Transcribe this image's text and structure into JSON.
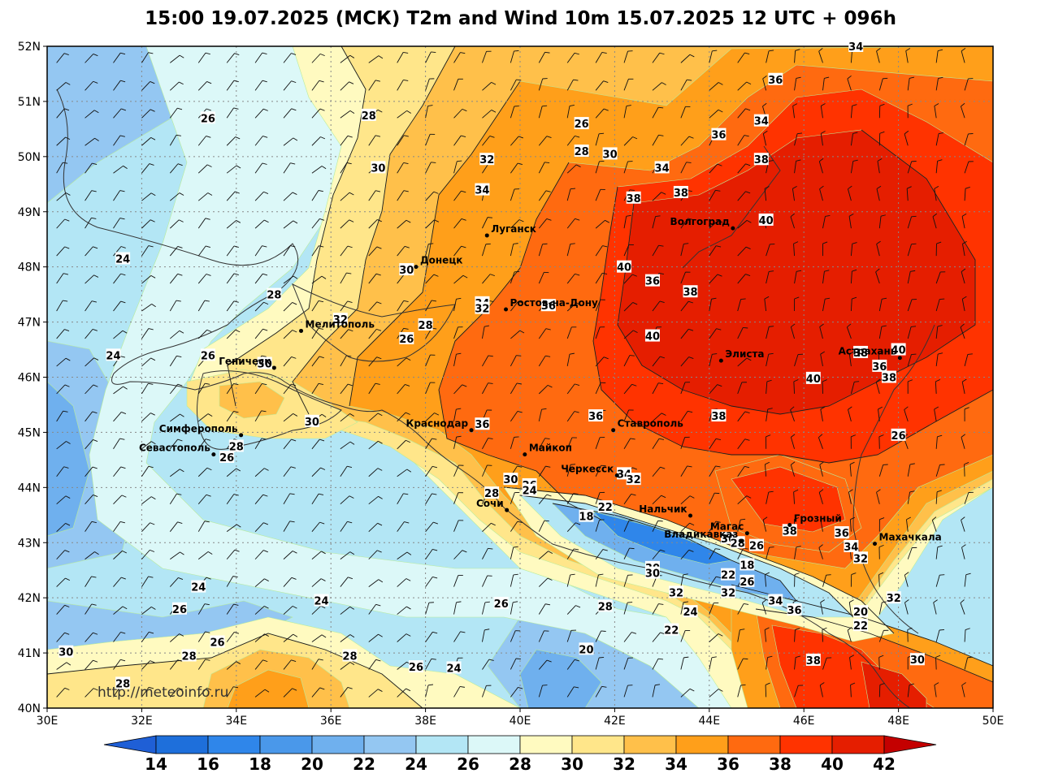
{
  "title": "15:00 19.07.2025 (МСК) T2m and Wind 10m 15.07.2025 12 UTC + 096h",
  "credit": "http://meteoinfo.ru",
  "colors": {
    "14": "#1e6fdb",
    "16": "#2f86ea",
    "18": "#4a98ea",
    "20": "#6fb0ee",
    "22": "#94c7f2",
    "24": "#b3e6f5",
    "26": "#dcf8f8",
    "28": "#fffac0",
    "30": "#ffe68a",
    "32": "#ffc04a",
    "34": "#ff9f1a",
    "36": "#ff6a10",
    "38": "#ff3300",
    "40": "#e51e00",
    "42": "#c40000"
  },
  "lat_labels": [
    "52N",
    "51N",
    "50N",
    "49N",
    "48N",
    "47N",
    "46N",
    "45N",
    "44N",
    "43N",
    "42N",
    "41N",
    "40N"
  ],
  "lon_labels": [
    "30E",
    "32E",
    "34E",
    "36E",
    "38E",
    "40E",
    "42E",
    "44E",
    "46E",
    "48E",
    "50E"
  ],
  "colorbar_labels": [
    "14",
    "16",
    "18",
    "20",
    "22",
    "24",
    "26",
    "28",
    "30",
    "32",
    "34",
    "36",
    "38",
    "40",
    "42"
  ],
  "cities": [
    {
      "name": "Луганск",
      "lon": 39.3,
      "lat": 48.57
    },
    {
      "name": "Донецк",
      "lon": 37.8,
      "lat": 48.0
    },
    {
      "name": "Волгоград",
      "lon": 44.5,
      "lat": 48.7
    },
    {
      "name": "Ростов-на-Дону",
      "lon": 39.7,
      "lat": 47.23
    },
    {
      "name": "Мелитополь",
      "lon": 35.37,
      "lat": 46.84
    },
    {
      "name": "Геническ",
      "lon": 34.8,
      "lat": 46.17
    },
    {
      "name": "Элиста",
      "lon": 44.25,
      "lat": 46.3
    },
    {
      "name": "Астрахань",
      "lon": 48.03,
      "lat": 46.35
    },
    {
      "name": "Краснодар",
      "lon": 38.97,
      "lat": 45.04
    },
    {
      "name": "Ставрополь",
      "lon": 41.97,
      "lat": 45.04
    },
    {
      "name": "Симферополь",
      "lon": 34.1,
      "lat": 44.95
    },
    {
      "name": "Севастополь",
      "lon": 33.52,
      "lat": 44.6
    },
    {
      "name": "Майкоп",
      "lon": 40.1,
      "lat": 44.6
    },
    {
      "name": "Черкесск",
      "lon": 42.05,
      "lat": 44.22
    },
    {
      "name": "Нальчик",
      "lon": 43.6,
      "lat": 43.49
    },
    {
      "name": "Сочи",
      "lon": 39.72,
      "lat": 43.59
    },
    {
      "name": "Магас",
      "lon": 44.8,
      "lat": 43.17
    },
    {
      "name": "Грозный",
      "lon": 45.7,
      "lat": 43.32
    },
    {
      "name": "Владикавказ",
      "lon": 44.68,
      "lat": 43.03
    },
    {
      "name": "Махачкала",
      "lon": 47.5,
      "lat": 42.98
    }
  ],
  "contour_labels": [
    {
      "v": "34",
      "lon": 47.1,
      "lat": 52.0
    },
    {
      "v": "36",
      "lon": 45.4,
      "lat": 51.4
    },
    {
      "v": "26",
      "lon": 33.4,
      "lat": 50.7
    },
    {
      "v": "28",
      "lon": 36.8,
      "lat": 50.75
    },
    {
      "v": "26",
      "lon": 41.3,
      "lat": 50.6
    },
    {
      "v": "36",
      "lon": 44.2,
      "lat": 50.4
    },
    {
      "v": "34",
      "lon": 45.1,
      "lat": 50.65
    },
    {
      "v": "28",
      "lon": 41.3,
      "lat": 50.1
    },
    {
      "v": "30",
      "lon": 41.9,
      "lat": 50.05
    },
    {
      "v": "32",
      "lon": 39.3,
      "lat": 49.95
    },
    {
      "v": "34",
      "lon": 43.0,
      "lat": 49.8
    },
    {
      "v": "38",
      "lon": 45.1,
      "lat": 49.95
    },
    {
      "v": "30",
      "lon": 37.0,
      "lat": 49.8
    },
    {
      "v": "34",
      "lon": 39.2,
      "lat": 49.4
    },
    {
      "v": "38",
      "lon": 43.4,
      "lat": 49.35
    },
    {
      "v": "38",
      "lon": 42.4,
      "lat": 49.25
    },
    {
      "v": "40",
      "lon": 45.2,
      "lat": 48.85
    },
    {
      "v": "24",
      "lon": 31.6,
      "lat": 48.15
    },
    {
      "v": "30",
      "lon": 37.6,
      "lat": 47.95
    },
    {
      "v": "40",
      "lon": 42.2,
      "lat": 48.0
    },
    {
      "v": "36",
      "lon": 42.8,
      "lat": 47.75
    },
    {
      "v": "38",
      "lon": 43.6,
      "lat": 47.55
    },
    {
      "v": "28",
      "lon": 34.8,
      "lat": 47.5
    },
    {
      "v": "34",
      "lon": 39.2,
      "lat": 47.35
    },
    {
      "v": "32",
      "lon": 39.2,
      "lat": 47.25
    },
    {
      "v": "36",
      "lon": 40.6,
      "lat": 47.3
    },
    {
      "v": "32",
      "lon": 36.2,
      "lat": 47.05
    },
    {
      "v": "28",
      "lon": 38.0,
      "lat": 46.95
    },
    {
      "v": "26",
      "lon": 37.6,
      "lat": 46.7
    },
    {
      "v": "40",
      "lon": 42.8,
      "lat": 46.75
    },
    {
      "v": "24",
      "lon": 31.4,
      "lat": 46.4
    },
    {
      "v": "26",
      "lon": 33.4,
      "lat": 46.4
    },
    {
      "v": "30",
      "lon": 34.6,
      "lat": 46.25
    },
    {
      "v": "38",
      "lon": 47.2,
      "lat": 46.45
    },
    {
      "v": "40",
      "lon": 48.0,
      "lat": 46.5
    },
    {
      "v": "36",
      "lon": 47.6,
      "lat": 46.2
    },
    {
      "v": "38",
      "lon": 47.8,
      "lat": 46.0
    },
    {
      "v": "40",
      "lon": 46.2,
      "lat": 45.98
    },
    {
      "v": "36",
      "lon": 41.6,
      "lat": 45.3
    },
    {
      "v": "36",
      "lon": 39.2,
      "lat": 45.15
    },
    {
      "v": "38",
      "lon": 44.2,
      "lat": 45.3
    },
    {
      "v": "30",
      "lon": 35.6,
      "lat": 45.2
    },
    {
      "v": "26",
      "lon": 48.0,
      "lat": 44.95
    },
    {
      "v": "28",
      "lon": 34.0,
      "lat": 44.75
    },
    {
      "v": "26",
      "lon": 33.8,
      "lat": 44.55
    },
    {
      "v": "34",
      "lon": 42.2,
      "lat": 44.25
    },
    {
      "v": "32",
      "lon": 42.4,
      "lat": 44.15
    },
    {
      "v": "30",
      "lon": 39.8,
      "lat": 44.15
    },
    {
      "v": "26",
      "lon": 40.2,
      "lat": 44.05
    },
    {
      "v": "24",
      "lon": 40.2,
      "lat": 43.95
    },
    {
      "v": "28",
      "lon": 39.4,
      "lat": 43.9
    },
    {
      "v": "22",
      "lon": 41.8,
      "lat": 43.65
    },
    {
      "v": "18",
      "lon": 41.4,
      "lat": 43.48
    },
    {
      "v": "30",
      "lon": 44.4,
      "lat": 43.08
    },
    {
      "v": "28",
      "lon": 44.6,
      "lat": 43.0
    },
    {
      "v": "26",
      "lon": 45.0,
      "lat": 42.95
    },
    {
      "v": "36",
      "lon": 46.8,
      "lat": 43.18
    },
    {
      "v": "38",
      "lon": 45.7,
      "lat": 43.22
    },
    {
      "v": "34",
      "lon": 47.0,
      "lat": 42.93
    },
    {
      "v": "32",
      "lon": 47.2,
      "lat": 42.72
    },
    {
      "v": "30",
      "lon": 42.8,
      "lat": 42.55
    },
    {
      "v": "30",
      "lon": 42.8,
      "lat": 42.45
    },
    {
      "v": "18",
      "lon": 44.8,
      "lat": 42.6
    },
    {
      "v": "22",
      "lon": 44.4,
      "lat": 42.42
    },
    {
      "v": "26",
      "lon": 44.8,
      "lat": 42.3
    },
    {
      "v": "32",
      "lon": 43.3,
      "lat": 42.1
    },
    {
      "v": "32",
      "lon": 44.4,
      "lat": 42.1
    },
    {
      "v": "34",
      "lon": 45.4,
      "lat": 41.95
    },
    {
      "v": "36",
      "lon": 45.8,
      "lat": 41.78
    },
    {
      "v": "20",
      "lon": 47.2,
      "lat": 41.75
    },
    {
      "v": "22",
      "lon": 47.2,
      "lat": 41.5
    },
    {
      "v": "32",
      "lon": 47.9,
      "lat": 42.0
    },
    {
      "v": "24",
      "lon": 33.2,
      "lat": 42.2
    },
    {
      "v": "26",
      "lon": 32.8,
      "lat": 41.8
    },
    {
      "v": "24",
      "lon": 35.8,
      "lat": 41.95
    },
    {
      "v": "26",
      "lon": 39.6,
      "lat": 41.9
    },
    {
      "v": "28",
      "lon": 41.8,
      "lat": 41.85
    },
    {
      "v": "24",
      "lon": 43.6,
      "lat": 41.75
    },
    {
      "v": "22",
      "lon": 43.2,
      "lat": 41.42
    },
    {
      "v": "26",
      "lon": 33.6,
      "lat": 41.2
    },
    {
      "v": "28",
      "lon": 33.0,
      "lat": 40.95
    },
    {
      "v": "30",
      "lon": 30.4,
      "lat": 41.02
    },
    {
      "v": "28",
      "lon": 36.4,
      "lat": 40.95
    },
    {
      "v": "20",
      "lon": 41.4,
      "lat": 41.07
    },
    {
      "v": "26",
      "lon": 37.8,
      "lat": 40.75
    },
    {
      "v": "24",
      "lon": 38.6,
      "lat": 40.73
    },
    {
      "v": "38",
      "lon": 46.2,
      "lat": 40.87
    },
    {
      "v": "30",
      "lon": 48.4,
      "lat": 40.88
    },
    {
      "v": "28",
      "lon": 31.6,
      "lat": 40.45
    }
  ]
}
